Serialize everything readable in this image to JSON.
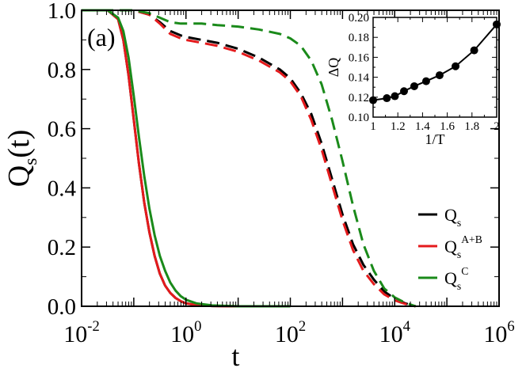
{
  "chart_data": [
    {
      "type": "line",
      "panel_label": "(a)",
      "title": "",
      "xlabel": "t",
      "ylabel": "Q_s(t)",
      "xscale": "log",
      "xlim_log10": [
        -2,
        6
      ],
      "ylim": [
        0.0,
        1.0
      ],
      "x_tick_labels": [
        {
          "base": "10",
          "exp": "-2",
          "log10": -2
        },
        {
          "base": "10",
          "exp": "0",
          "log10": 0
        },
        {
          "base": "10",
          "exp": "2",
          "log10": 2
        },
        {
          "base": "10",
          "exp": "4",
          "log10": 4
        },
        {
          "base": "10",
          "exp": "6",
          "log10": 6
        }
      ],
      "y_ticks": [
        0.0,
        0.2,
        0.4,
        0.6,
        0.8,
        1.0
      ],
      "y_tick_labels": [
        "0.0",
        "0.2",
        "0.4",
        "0.6",
        "0.8",
        "1.0"
      ],
      "legend": {
        "placement": "bottom-right",
        "entries": [
          {
            "base": "Q",
            "sub": "s",
            "sup": "",
            "color": "#000000"
          },
          {
            "base": "Q",
            "sub": "s",
            "sup": "A+B",
            "color": "#e41a1c"
          },
          {
            "base": "Q",
            "sub": "s",
            "sup": "C",
            "color": "#1a8a1a"
          }
        ]
      },
      "series": [
        {
          "name": "Qs solid",
          "color": "#000000",
          "dash": "solid",
          "log10t": [
            -2,
            -1.5,
            -1.3,
            -1.2,
            -1.1,
            -1.0,
            -0.9,
            -0.8,
            -0.7,
            -0.6,
            -0.5,
            -0.4,
            -0.3,
            -0.2,
            -0.1,
            0.0,
            0.2,
            0.5,
            1.0,
            2.0
          ],
          "q": [
            1.0,
            1.0,
            0.97,
            0.9,
            0.78,
            0.63,
            0.48,
            0.35,
            0.25,
            0.17,
            0.11,
            0.07,
            0.045,
            0.028,
            0.017,
            0.01,
            0.004,
            0.001,
            0.0,
            0.0
          ]
        },
        {
          "name": "Qs^A+B solid",
          "color": "#e41a1c",
          "dash": "solid",
          "log10t": [
            -2,
            -1.5,
            -1.3,
            -1.2,
            -1.1,
            -1.0,
            -0.9,
            -0.8,
            -0.7,
            -0.6,
            -0.5,
            -0.4,
            -0.3,
            -0.2,
            -0.1,
            0.0,
            0.2,
            0.5,
            1.0,
            2.0
          ],
          "q": [
            1.0,
            1.0,
            0.97,
            0.9,
            0.78,
            0.63,
            0.48,
            0.35,
            0.25,
            0.17,
            0.11,
            0.07,
            0.045,
            0.028,
            0.017,
            0.01,
            0.004,
            0.001,
            0.0,
            0.0
          ]
        },
        {
          "name": "Qs^C solid",
          "color": "#1a8a1a",
          "dash": "solid",
          "log10t": [
            -2,
            -1.5,
            -1.3,
            -1.2,
            -1.1,
            -1.0,
            -0.9,
            -0.8,
            -0.7,
            -0.6,
            -0.5,
            -0.4,
            -0.3,
            -0.2,
            -0.1,
            0.0,
            0.2,
            0.5,
            1.0,
            2.0
          ],
          "q": [
            1.0,
            1.0,
            0.975,
            0.93,
            0.84,
            0.71,
            0.57,
            0.44,
            0.33,
            0.24,
            0.17,
            0.12,
            0.08,
            0.053,
            0.034,
            0.022,
            0.01,
            0.003,
            0.0,
            0.0
          ]
        },
        {
          "name": "Qs dashed",
          "color": "#000000",
          "dash": "dashed",
          "log10t": [
            -2,
            -1.5,
            -1.0,
            -0.7,
            -0.5,
            -0.3,
            -0.1,
            0.0,
            0.3,
            0.6,
            1.0,
            1.4,
            1.8,
            2.0,
            2.2,
            2.4,
            2.6,
            2.8,
            3.0,
            3.2,
            3.4,
            3.6,
            3.8,
            4.0,
            4.2,
            4.4
          ],
          "q": [
            1.0,
            1.0,
            1.0,
            0.985,
            0.96,
            0.93,
            0.915,
            0.91,
            0.9,
            0.89,
            0.87,
            0.84,
            0.8,
            0.77,
            0.72,
            0.65,
            0.55,
            0.43,
            0.31,
            0.21,
            0.14,
            0.09,
            0.05,
            0.025,
            0.01,
            0.0
          ]
        },
        {
          "name": "Qs^A+B dashed",
          "color": "#e41a1c",
          "dash": "dashed",
          "log10t": [
            -2,
            -1.5,
            -1.0,
            -0.7,
            -0.5,
            -0.3,
            -0.1,
            0.0,
            0.3,
            0.6,
            1.0,
            1.4,
            1.8,
            2.0,
            2.2,
            2.4,
            2.6,
            2.8,
            3.0,
            3.2,
            3.4,
            3.6,
            3.8,
            4.0,
            4.2,
            4.4
          ],
          "q": [
            1.0,
            1.0,
            1.0,
            0.985,
            0.955,
            0.92,
            0.905,
            0.9,
            0.89,
            0.88,
            0.86,
            0.83,
            0.79,
            0.76,
            0.71,
            0.63,
            0.53,
            0.41,
            0.29,
            0.19,
            0.12,
            0.075,
            0.04,
            0.02,
            0.008,
            0.0
          ]
        },
        {
          "name": "Qs^C dashed",
          "color": "#1a8a1a",
          "dash": "dashed",
          "log10t": [
            -2,
            -1.5,
            -1.0,
            -0.7,
            -0.5,
            -0.3,
            -0.1,
            0.0,
            0.3,
            0.6,
            1.0,
            1.4,
            1.8,
            2.0,
            2.2,
            2.4,
            2.6,
            2.8,
            3.0,
            3.2,
            3.4,
            3.6,
            3.8,
            4.0,
            4.2,
            4.4
          ],
          "q": [
            1.0,
            1.0,
            1.0,
            0.99,
            0.975,
            0.96,
            0.955,
            0.955,
            0.955,
            0.95,
            0.945,
            0.935,
            0.92,
            0.905,
            0.88,
            0.83,
            0.75,
            0.63,
            0.49,
            0.34,
            0.21,
            0.12,
            0.06,
            0.03,
            0.012,
            0.0
          ]
        }
      ]
    },
    {
      "type": "scatter",
      "inset": true,
      "xlabel": "1/T",
      "ylabel": "ΔQ",
      "xlim": [
        1.0,
        2.0
      ],
      "ylim": [
        0.1,
        0.2
      ],
      "x_ticks": [
        1.0,
        1.2,
        1.4,
        1.6,
        1.8,
        2.0
      ],
      "x_tick_labels": [
        "1",
        "1.2",
        "1.4",
        "1.6",
        "1.8",
        "2"
      ],
      "y_ticks": [
        0.1,
        0.12,
        0.14,
        0.16,
        0.18,
        0.2
      ],
      "y_tick_labels": [
        "0.10",
        "0.12",
        "0.14",
        "0.16",
        "0.18",
        "0.20"
      ],
      "x": [
        1.0,
        1.111,
        1.176,
        1.25,
        1.333,
        1.429,
        1.538,
        1.667,
        1.818,
        2.0
      ],
      "y": [
        0.117,
        0.119,
        0.121,
        0.126,
        0.131,
        0.136,
        0.142,
        0.151,
        0.167,
        0.193
      ]
    }
  ]
}
